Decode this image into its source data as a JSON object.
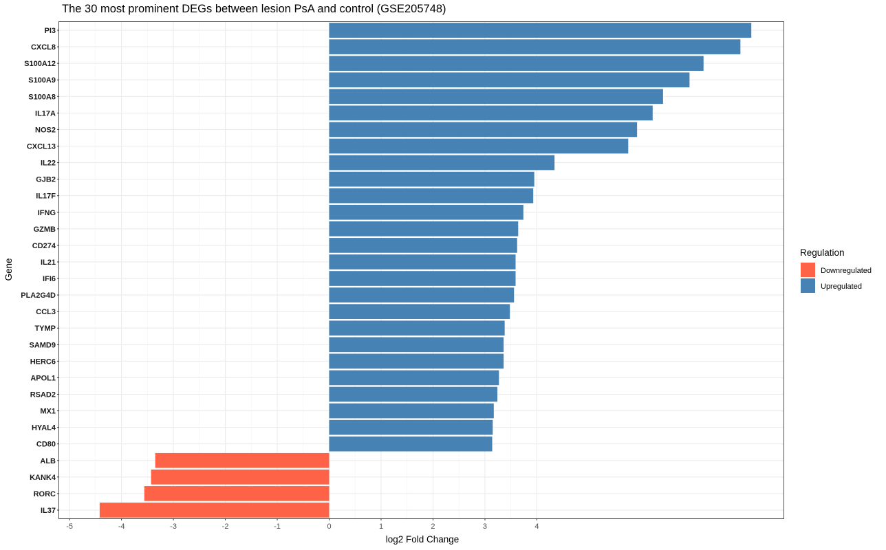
{
  "chart_data": {
    "type": "bar",
    "orientation": "horizontal",
    "title": "The 30 most prominent DEGs between lesion PsA and control (GSE205748)",
    "xlabel": "log2 Fold Change",
    "ylabel": "Gene",
    "xlim": [
      -5.2,
      8.75
    ],
    "x_ticks": [
      "-5",
      "-4",
      "-3",
      "-2",
      "-1",
      "0",
      "1",
      "2",
      "3",
      "4"
    ],
    "grid": true,
    "legend": {
      "title": "Regulation",
      "placement": "right",
      "items": [
        {
          "label": "Downregulated",
          "color": "#FF6347"
        },
        {
          "label": "Upregulated",
          "color": "#4682B4"
        }
      ]
    },
    "categories": [
      "PI3",
      "CXCL8",
      "S100A12",
      "S100A9",
      "S100A8",
      "IL17A",
      "NOS2",
      "CXCL13",
      "IL22",
      "GJB2",
      "IL17F",
      "IFNG",
      "GZMB",
      "CD274",
      "IL21",
      "IFI6",
      "PLA2G4D",
      "CCL3",
      "TYMP",
      "SAMD9",
      "HERC6",
      "APOL1",
      "RSAD2",
      "MX1",
      "HYAL4",
      "CD80",
      "ALB",
      "KANK4",
      "RORC",
      "IL37"
    ],
    "values": [
      8.13,
      7.92,
      7.21,
      6.94,
      6.43,
      6.23,
      5.93,
      5.76,
      4.34,
      3.95,
      3.93,
      3.74,
      3.64,
      3.62,
      3.59,
      3.59,
      3.56,
      3.48,
      3.38,
      3.36,
      3.36,
      3.27,
      3.24,
      3.17,
      3.15,
      3.14,
      -3.35,
      -3.43,
      -3.56,
      -4.42
    ],
    "regulation": [
      "Upregulated",
      "Upregulated",
      "Upregulated",
      "Upregulated",
      "Upregulated",
      "Upregulated",
      "Upregulated",
      "Upregulated",
      "Upregulated",
      "Upregulated",
      "Upregulated",
      "Upregulated",
      "Upregulated",
      "Upregulated",
      "Upregulated",
      "Upregulated",
      "Upregulated",
      "Upregulated",
      "Upregulated",
      "Upregulated",
      "Upregulated",
      "Upregulated",
      "Upregulated",
      "Upregulated",
      "Upregulated",
      "Upregulated",
      "Downregulated",
      "Downregulated",
      "Downregulated",
      "Downregulated"
    ]
  }
}
